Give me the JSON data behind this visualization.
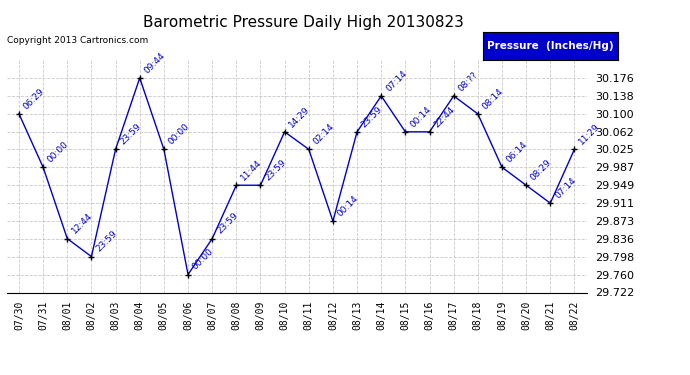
{
  "title": "Barometric Pressure Daily High 20130823",
  "copyright": "Copyright 2013 Cartronics.com",
  "legend_label": "Pressure  (Inches/Hg)",
  "x_labels": [
    "07/30",
    "07/31",
    "08/01",
    "08/02",
    "08/03",
    "08/04",
    "08/05",
    "08/06",
    "08/07",
    "08/08",
    "08/09",
    "08/10",
    "08/11",
    "08/12",
    "08/13",
    "08/14",
    "08/15",
    "08/16",
    "08/17",
    "08/18",
    "08/19",
    "08/20",
    "08/21",
    "08/22"
  ],
  "y_values": [
    30.1,
    29.987,
    29.836,
    29.798,
    30.025,
    30.176,
    30.025,
    29.76,
    29.836,
    29.949,
    29.949,
    30.062,
    30.025,
    29.873,
    30.062,
    30.138,
    30.062,
    30.062,
    30.138,
    30.1,
    29.987,
    29.949,
    29.911,
    30.025
  ],
  "point_labels": [
    "06:29",
    "00:00",
    "12:44",
    "23:59",
    "23:59",
    "09:44",
    "00:00",
    "00:00",
    "23:59",
    "11:44",
    "23:59",
    "14:29",
    "02:14",
    "00:14",
    "23:59",
    "07:14",
    "00:14",
    "22:44",
    "08:??",
    "08:14",
    "06:14",
    "08:29",
    "07:14",
    "11:29"
  ],
  "ylim_min": 29.722,
  "ylim_max": 30.214,
  "yticks": [
    29.722,
    29.76,
    29.798,
    29.836,
    29.873,
    29.911,
    29.949,
    29.987,
    30.025,
    30.062,
    30.1,
    30.138,
    30.176
  ],
  "line_color": "#0000cc",
  "marker_color": "#000000",
  "bg_color": "#ffffff",
  "grid_color": "#bbbbbb",
  "title_color": "#000000",
  "legend_bg": "#0000cc",
  "legend_text_color": "#ffffff",
  "label_fontsize": 6.5,
  "title_fontsize": 11,
  "ytick_fontsize": 8,
  "xtick_fontsize": 7
}
